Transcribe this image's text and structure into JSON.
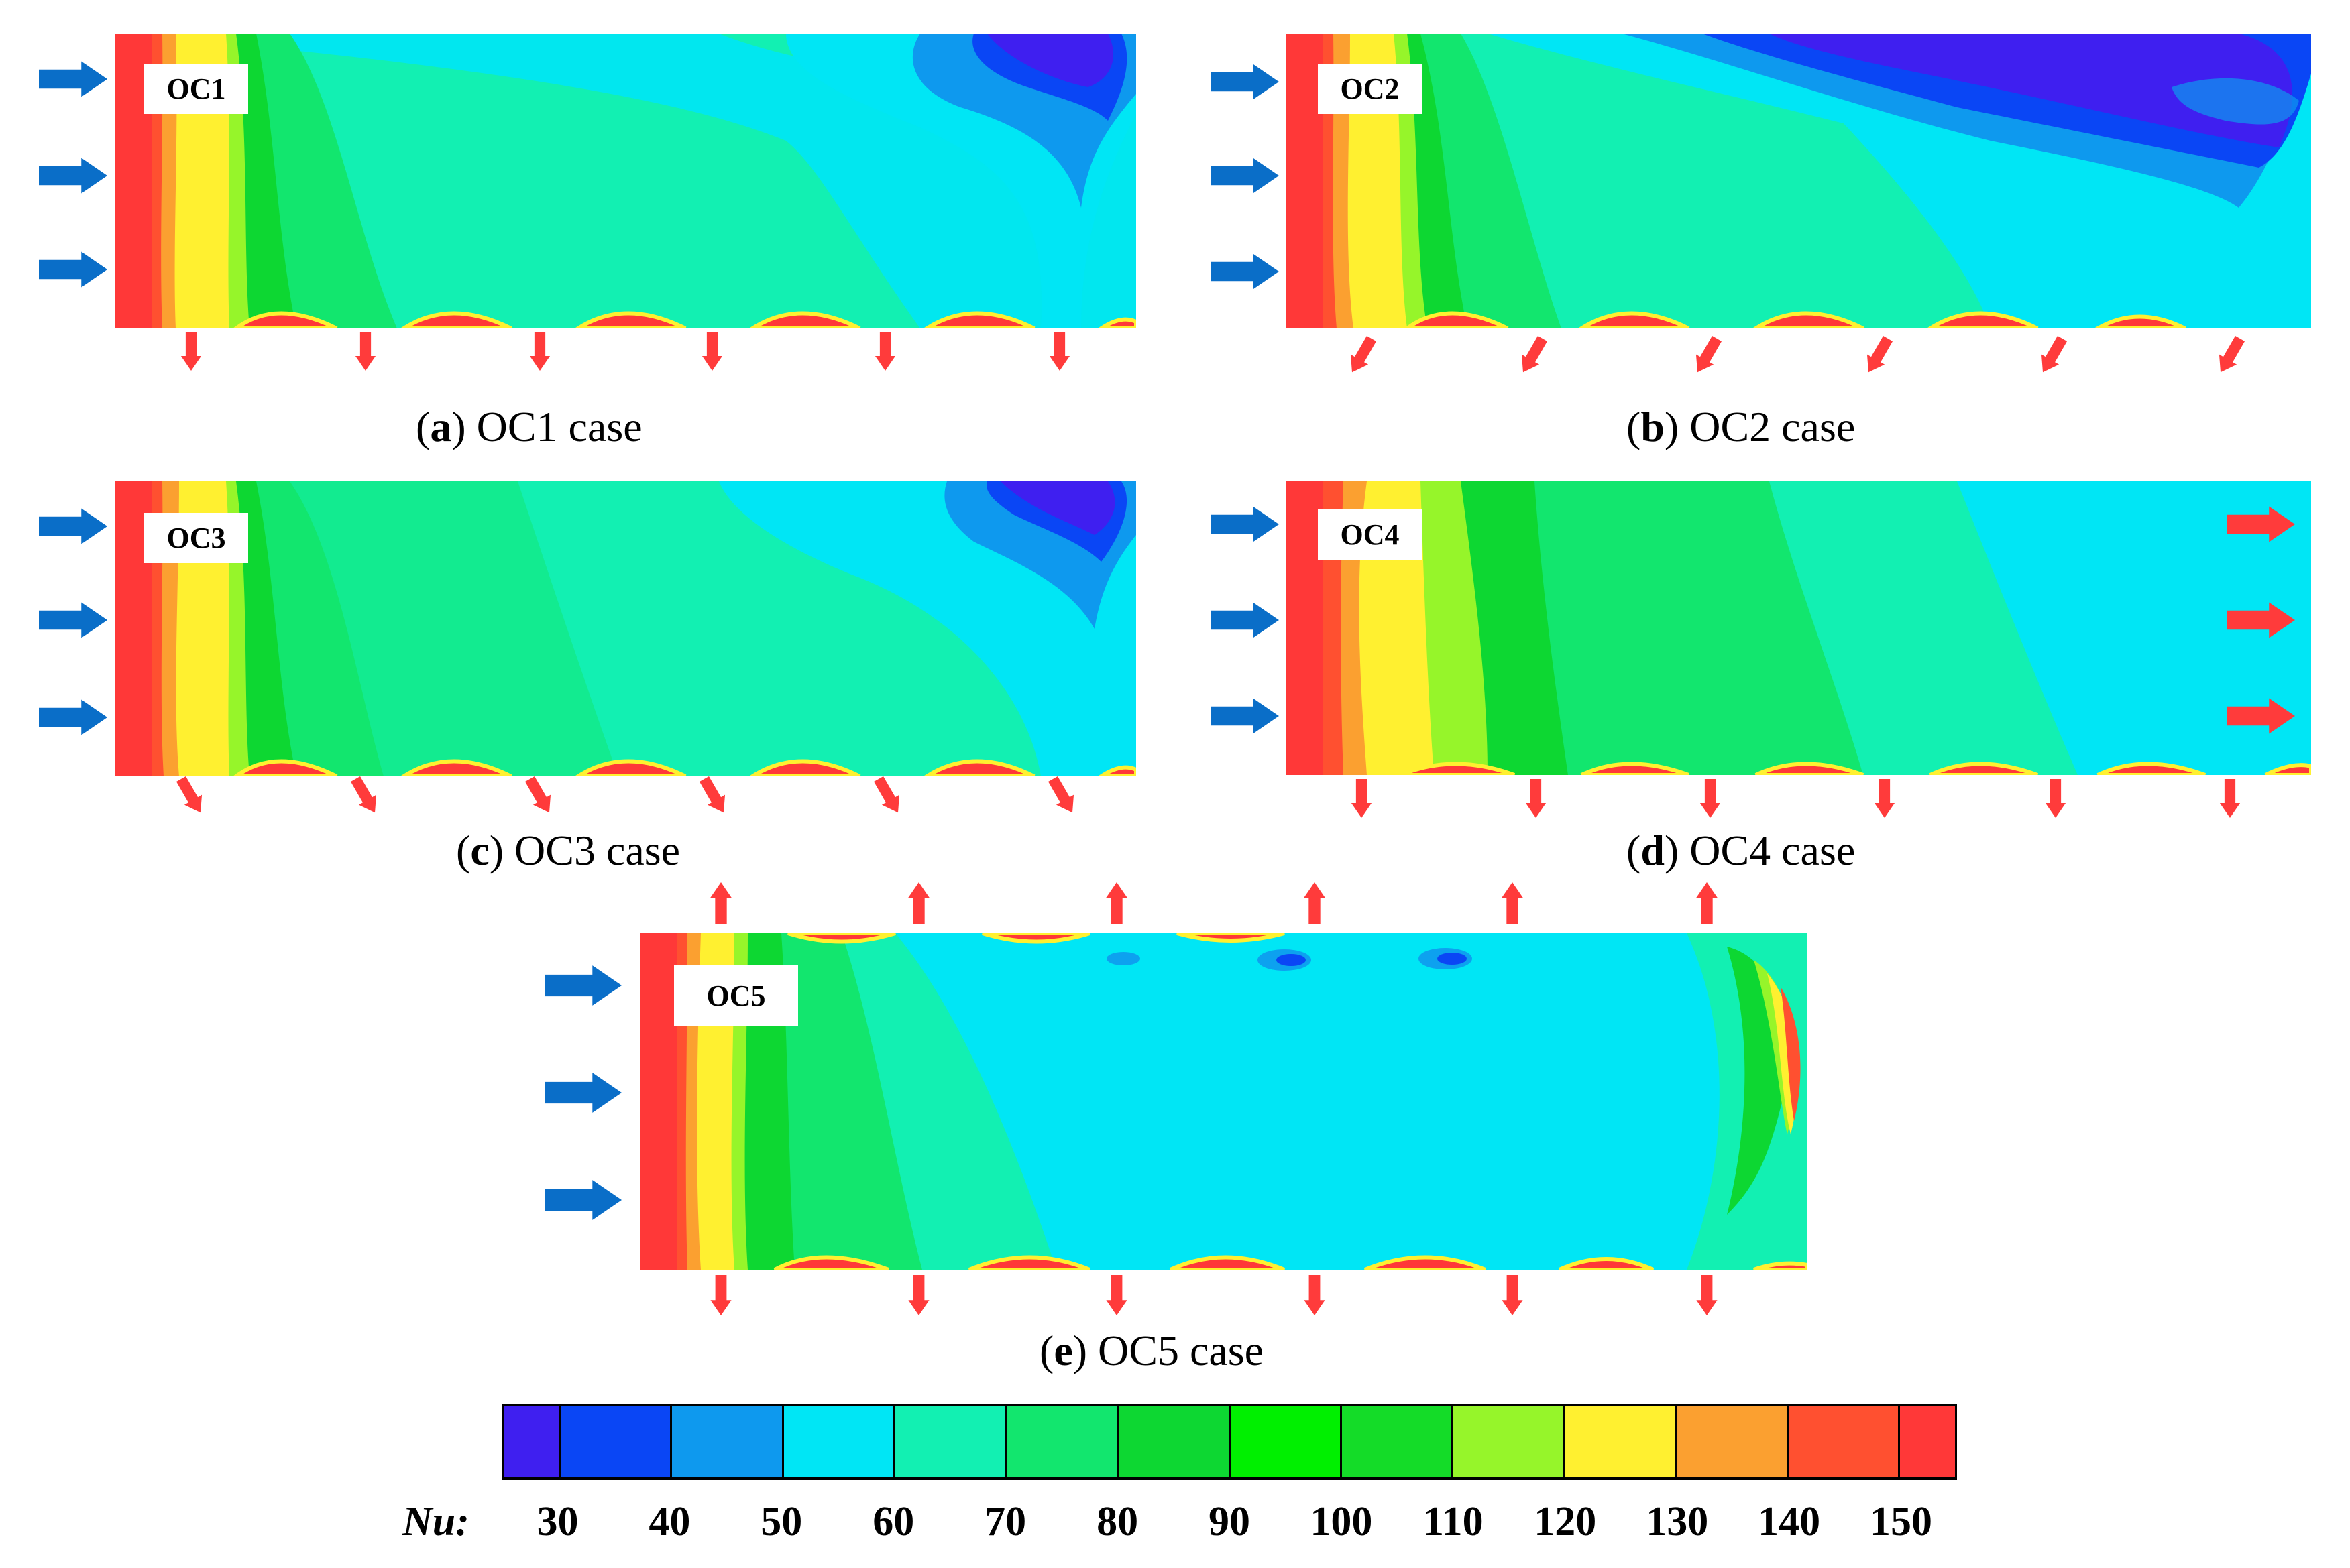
{
  "colors": {
    "c30": "#3f1ff0",
    "c40": "#0a46f5",
    "c50": "#0e99ee",
    "c60": "#00e6f5",
    "c70": "#12f0b2",
    "c80": "#12e66e",
    "c90": "#0dd732",
    "c100": "#00f000",
    "c110": "#14dc28",
    "c120": "#96f52a",
    "c130": "#fff030",
    "c140": "#fba030",
    "c150": "#ff5030",
    "c160": "#ff3838",
    "inlet_arrow": "#0a6ec8",
    "outlet_arrow": "#ff3b3b"
  },
  "panels": [
    {
      "id": "oc1",
      "label": "OC1",
      "caption_letter": "a",
      "caption_text": " OC1 case"
    },
    {
      "id": "oc2",
      "label": "OC2",
      "caption_letter": "b",
      "caption_text": " OC2 case"
    },
    {
      "id": "oc3",
      "label": "OC3",
      "caption_letter": "c",
      "caption_text": " OC3 case"
    },
    {
      "id": "oc4",
      "label": "OC4",
      "caption_letter": "d",
      "caption_text": " OC4 case"
    },
    {
      "id": "oc5",
      "label": "OC5",
      "caption_letter": "e",
      "caption_text": " OC5 case"
    }
  ],
  "legend": {
    "variable": "Nu:",
    "ticks": [
      "30",
      "40",
      "50",
      "60",
      "70",
      "80",
      "90",
      "100",
      "110",
      "120",
      "130",
      "140",
      "150"
    ],
    "colors": [
      "#3f1ff0",
      "#0a46f5",
      "#0e99ee",
      "#00e6f5",
      "#12f0b2",
      "#12e66e",
      "#0dd732",
      "#00f000",
      "#14dc28",
      "#96f52a",
      "#fff030",
      "#fba030",
      "#ff5030",
      "#ff3838"
    ]
  }
}
